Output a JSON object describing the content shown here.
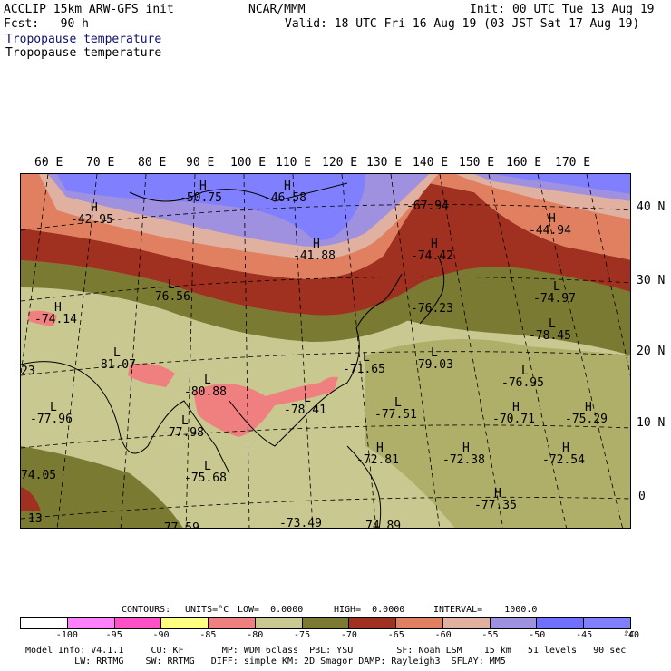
{
  "header": {
    "line1_left": "ACCLIP 15km ARW-GFS init",
    "line1_center": "NCAR/MMM",
    "line1_right": "Init: 00 UTC Tue 13 Aug 19",
    "line2_left": "Fcst:   90 h",
    "line2_right": "Valid: 18 UTC Fri 16 Aug 19 (03 JST Sat 17 Aug 19)",
    "field_blue": "Tropopause temperature",
    "field_black": "Tropopause temperature"
  },
  "longitude_labels": [
    "60 E",
    "70 E",
    "80 E",
    "90 E",
    "100 E",
    "110 E",
    "120 E",
    "130 E",
    "140 E",
    "150 E",
    "160 E",
    "170 E"
  ],
  "latitude_labels": [
    "40 N",
    "30 N",
    "20 N",
    "10 N",
    "0"
  ],
  "map_labels": [
    {
      "mark": "H",
      "value": "-42.95"
    },
    {
      "mark": "H",
      "value": "-50.75"
    },
    {
      "mark": "H",
      "value": "-46.58"
    },
    {
      "mark": "H",
      "value": "-41.88"
    },
    {
      "mark": "",
      "value": "-67.94"
    },
    {
      "mark": "H",
      "value": "-44.94"
    },
    {
      "mark": "L",
      "value": "-76.56"
    },
    {
      "mark": "H",
      "value": "-74.42"
    },
    {
      "mark": "L",
      "value": "-74.97"
    },
    {
      "mark": "H",
      "value": "-74.14"
    },
    {
      "mark": "",
      "value": "-76.23"
    },
    {
      "mark": "L",
      "value": "-78.45"
    },
    {
      "mark": "L",
      "value": "-81.07"
    },
    {
      "mark": "L",
      "value": "-71.65"
    },
    {
      "mark": "L",
      "value": "-79.03"
    },
    {
      "mark": "",
      "value": "23"
    },
    {
      "mark": "L",
      "value": "-80.88"
    },
    {
      "mark": "L",
      "value": "-76.95"
    },
    {
      "mark": "L",
      "value": "-78.41"
    },
    {
      "mark": "L",
      "value": "-77.51"
    },
    {
      "mark": "H",
      "value": "-70.71"
    },
    {
      "mark": "H",
      "value": "-75.29"
    },
    {
      "mark": "L",
      "value": "-77.96"
    },
    {
      "mark": "L",
      "value": "-77.98"
    },
    {
      "mark": "H",
      "value": "-72.81"
    },
    {
      "mark": "H",
      "value": "-72.38"
    },
    {
      "mark": "H",
      "value": "-72.54"
    },
    {
      "mark": "",
      "value": "74.05"
    },
    {
      "mark": "L",
      "value": "-75.68"
    },
    {
      "mark": "H",
      "value": "-77.35"
    },
    {
      "mark": "",
      "value": "13"
    },
    {
      "mark": "",
      "value": "-73.49"
    },
    {
      "mark": "",
      "value": "74.89"
    },
    {
      "mark": "",
      "value": "-77.59"
    }
  ],
  "contours_line": {
    "contours": "CONTOURS:",
    "units": "UNITS=°C",
    "low": "LOW=  0.0000",
    "high": "HIGH=  0.0000",
    "interval": "INTERVAL=    1000.0"
  },
  "colorbar": {
    "colors": [
      "#ffffff",
      "#ff80ff",
      "#ff50c8",
      "#ffff80",
      "#f08080",
      "#c8c890",
      "#7a7a32",
      "#a03020",
      "#e08060",
      "#e0b0a0",
      "#a090e0",
      "#7070ff",
      "#8080ff"
    ],
    "ticks": [
      "-100",
      "-95",
      "-90",
      "-85",
      "-80",
      "-75",
      "-70",
      "-65",
      "-60",
      "-55",
      "-50",
      "-45",
      "-40",
      "°C"
    ]
  },
  "footer": {
    "line1": "Model Info: V4.1.1     CU: KF       MP: WDM 6class  PBL: YSU        SF: Noah LSM    15 km   51 levels   90 sec",
    "line2": "         LW: RRTMG    SW: RRTMG   DIFF: simple KM: 2D Smagor DAMP: Rayleigh3  SFLAY: MM5"
  },
  "colors": {
    "violet": "#8080ff",
    "pink": "#e0b0a0",
    "orange": "#e08060",
    "darkred": "#a03020",
    "olive": "#7a7a32",
    "khaki": "#c8c890",
    "salmon": "#f08080"
  }
}
